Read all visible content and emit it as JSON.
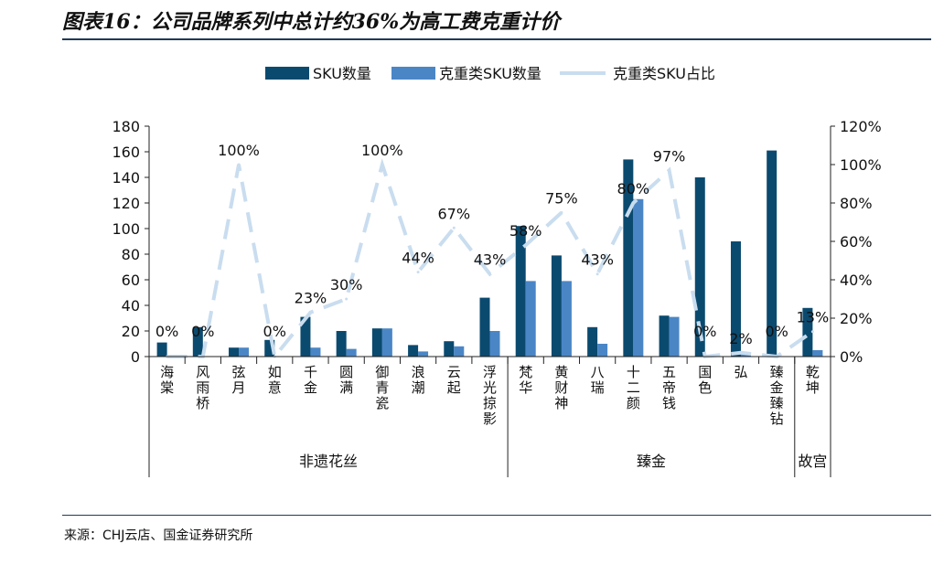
{
  "header": {
    "title": "图表16：公司品牌系列中总计约36%为高工费克重计价"
  },
  "footer": {
    "source": "来源：CHJ云店、国金证券研究所"
  },
  "colors": {
    "sku": "#0b4a6f",
    "weighed_sku": "#4a86c6",
    "share_line": "#c9ddef",
    "rule": "#1f3b57"
  },
  "chart_data": {
    "type": "bar",
    "legend_position": "top-center",
    "grid": false,
    "categories": [
      "海棠",
      "风雨桥",
      "弦月",
      "如意",
      "千金",
      "圆满",
      "御青瓷",
      "浪潮",
      "云起",
      "浮光掠影",
      "梵华",
      "黄财神",
      "八瑞",
      "十二颜",
      "五帝钱",
      "国色",
      "弘",
      "臻金臻钻",
      "乾坤"
    ],
    "groups": [
      {
        "label": "非遗花丝",
        "from": 0,
        "to": 9
      },
      {
        "label": "臻金",
        "from": 10,
        "to": 17
      },
      {
        "label": "故宫",
        "from": 18,
        "to": 18
      }
    ],
    "series": [
      {
        "name": "SKU数量",
        "type": "bar",
        "axis": "left",
        "values": [
          11,
          23,
          7,
          13,
          31,
          20,
          22,
          9,
          12,
          46,
          102,
          79,
          23,
          154,
          32,
          140,
          90,
          161,
          38
        ]
      },
      {
        "name": "克重类SKU数量",
        "type": "bar",
        "axis": "left",
        "values": [
          0,
          0,
          7,
          0,
          7,
          6,
          22,
          4,
          8,
          20,
          59,
          59,
          10,
          123,
          31,
          0,
          2,
          0,
          5
        ]
      },
      {
        "name": "克重类SKU占比",
        "type": "line",
        "axis": "right",
        "values": [
          0,
          0,
          100,
          0,
          23,
          30,
          100,
          44,
          67,
          43,
          58,
          75,
          43,
          80,
          97,
          0,
          2,
          0,
          13
        ],
        "labels": [
          "0%",
          "0%",
          "100%",
          "0%",
          "23%",
          "30%",
          "100%",
          "44%",
          "67%",
          "43%",
          "58%",
          "75%",
          "43%",
          "80%",
          "97%",
          "0%",
          "2%",
          "0%",
          "13%"
        ]
      }
    ],
    "left_axis": {
      "min": 0,
      "max": 180,
      "step": 20,
      "ticks": [
        "0",
        "20",
        "40",
        "60",
        "80",
        "100",
        "120",
        "140",
        "160",
        "180"
      ]
    },
    "right_axis": {
      "min": 0,
      "max": 120,
      "step": 20,
      "ticks": [
        "0%",
        "20%",
        "40%",
        "60%",
        "80%",
        "100%",
        "120%"
      ]
    }
  }
}
